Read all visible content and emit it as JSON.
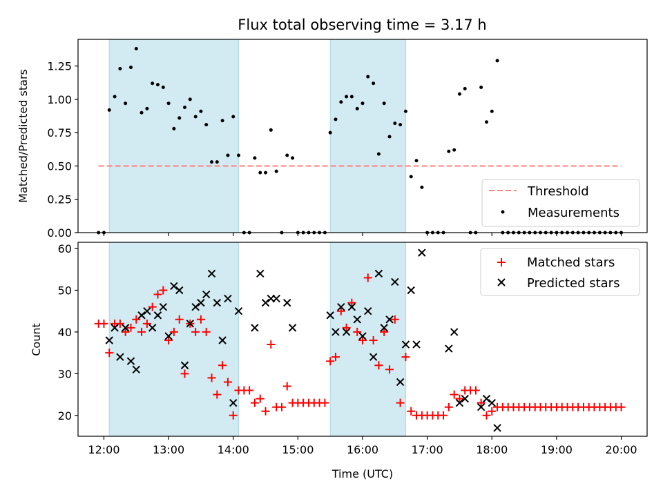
{
  "title": "Flux total observing time = 3.17 h",
  "colors": {
    "span": "#add8e6",
    "threshold": "#ff7f7f",
    "measurement": "#000000",
    "matched": "#ff0000",
    "predicted": "#000000"
  },
  "chart_data": [
    {
      "type": "scatter",
      "ylabel": "Matched/Predicted stars",
      "xlim": [
        11.6,
        20.4
      ],
      "ylim": [
        0,
        1.45
      ],
      "yticks": [
        0.0,
        0.25,
        0.5,
        0.75,
        1.0,
        1.25
      ],
      "ytick_labels": [
        "0.00",
        "0.25",
        "0.50",
        "0.75",
        "1.00",
        "1.25"
      ],
      "shaded_spans": [
        [
          12.083,
          14.083
        ],
        [
          15.5,
          16.667
        ]
      ],
      "threshold": {
        "name": "Threshold",
        "y": 0.5,
        "x_range": [
          11.917,
          20.0
        ]
      },
      "legend": {
        "position": "lower-right",
        "entries": [
          "Threshold",
          "Measurements"
        ]
      },
      "series": [
        {
          "name": "Measurements",
          "marker": "dot",
          "points": [
            [
              11.917,
              0
            ],
            [
              12.0,
              0
            ],
            [
              12.083,
              0.92
            ],
            [
              12.167,
              1.02
            ],
            [
              12.25,
              1.23
            ],
            [
              12.333,
              0.97
            ],
            [
              12.417,
              1.24
            ],
            [
              12.5,
              1.38
            ],
            [
              12.583,
              0.9
            ],
            [
              12.667,
              0.93
            ],
            [
              12.75,
              1.12
            ],
            [
              12.833,
              1.11
            ],
            [
              12.917,
              1.09
            ],
            [
              13.0,
              0.97
            ],
            [
              13.083,
              0.78
            ],
            [
              13.167,
              0.86
            ],
            [
              13.25,
              0.94
            ],
            [
              13.333,
              1.0
            ],
            [
              13.417,
              0.87
            ],
            [
              13.5,
              0.91
            ],
            [
              13.583,
              0.81
            ],
            [
              13.667,
              0.53
            ],
            [
              13.75,
              0.53
            ],
            [
              13.833,
              0.84
            ],
            [
              13.917,
              0.58
            ],
            [
              14.0,
              0.87
            ],
            [
              14.083,
              0.58
            ],
            [
              14.167,
              0
            ],
            [
              14.25,
              0
            ],
            [
              14.333,
              0.56
            ],
            [
              14.417,
              0.45
            ],
            [
              14.5,
              0.45
            ],
            [
              14.583,
              0.77
            ],
            [
              14.667,
              0.46
            ],
            [
              14.75,
              0
            ],
            [
              14.833,
              0.58
            ],
            [
              14.917,
              0.56
            ],
            [
              15.0,
              0
            ],
            [
              15.083,
              0
            ],
            [
              15.167,
              0
            ],
            [
              15.25,
              0
            ],
            [
              15.333,
              0
            ],
            [
              15.417,
              0
            ],
            [
              15.5,
              0.75
            ],
            [
              15.583,
              0.85
            ],
            [
              15.667,
              0.98
            ],
            [
              15.75,
              1.02
            ],
            [
              15.833,
              1.02
            ],
            [
              15.917,
              0.93
            ],
            [
              16.0,
              0.97
            ],
            [
              16.083,
              1.17
            ],
            [
              16.167,
              1.12
            ],
            [
              16.25,
              0.59
            ],
            [
              16.333,
              0.97
            ],
            [
              16.417,
              0.72
            ],
            [
              16.5,
              0.82
            ],
            [
              16.583,
              0.81
            ],
            [
              16.667,
              0.91
            ],
            [
              16.75,
              0.42
            ],
            [
              16.833,
              0.54
            ],
            [
              16.917,
              0.34
            ],
            [
              17.0,
              0
            ],
            [
              17.083,
              0
            ],
            [
              17.167,
              0
            ],
            [
              17.25,
              0
            ],
            [
              17.333,
              0.61
            ],
            [
              17.417,
              0.62
            ],
            [
              17.5,
              1.04
            ],
            [
              17.583,
              1.08
            ],
            [
              17.667,
              0
            ],
            [
              17.75,
              0
            ],
            [
              17.833,
              1.09
            ],
            [
              17.917,
              0.83
            ],
            [
              18.0,
              0.91
            ],
            [
              18.083,
              1.29
            ],
            [
              18.167,
              0
            ],
            [
              18.25,
              0
            ],
            [
              18.333,
              0
            ],
            [
              18.417,
              0
            ],
            [
              18.5,
              0
            ],
            [
              18.583,
              0
            ],
            [
              18.667,
              0
            ],
            [
              18.75,
              0
            ],
            [
              18.833,
              0
            ],
            [
              18.917,
              0
            ],
            [
              19.0,
              0
            ],
            [
              19.083,
              0
            ],
            [
              19.167,
              0
            ],
            [
              19.25,
              0
            ],
            [
              19.333,
              0
            ],
            [
              19.417,
              0
            ],
            [
              19.5,
              0
            ],
            [
              19.583,
              0
            ],
            [
              19.667,
              0
            ],
            [
              19.75,
              0
            ],
            [
              19.833,
              0
            ],
            [
              19.917,
              0
            ],
            [
              20.0,
              0
            ]
          ]
        }
      ]
    },
    {
      "type": "scatter",
      "xlabel": "Time (UTC)",
      "ylabel": "Count",
      "xlim": [
        11.6,
        20.4
      ],
      "ylim": [
        15,
        61.5
      ],
      "xticks": [
        12,
        13,
        14,
        15,
        16,
        17,
        18,
        19,
        20
      ],
      "xtick_labels": [
        "12:00",
        "13:00",
        "14:00",
        "15:00",
        "16:00",
        "17:00",
        "18:00",
        "19:00",
        "20:00"
      ],
      "yticks": [
        20,
        30,
        40,
        50,
        60
      ],
      "ytick_labels": [
        "20",
        "30",
        "40",
        "50",
        "60"
      ],
      "shaded_spans": [
        [
          12.083,
          14.083
        ],
        [
          15.5,
          16.667
        ]
      ],
      "legend": {
        "position": "upper-right",
        "entries": [
          "Matched stars",
          "Predicted stars"
        ]
      },
      "series": [
        {
          "name": "Matched stars",
          "marker": "plus",
          "points": [
            [
              11.917,
              42
            ],
            [
              12.0,
              42
            ],
            [
              12.083,
              35
            ],
            [
              12.167,
              42
            ],
            [
              12.25,
              42
            ],
            [
              12.333,
              40
            ],
            [
              12.417,
              41
            ],
            [
              12.5,
              43
            ],
            [
              12.583,
              40
            ],
            [
              12.667,
              42
            ],
            [
              12.75,
              46
            ],
            [
              12.833,
              49
            ],
            [
              12.917,
              50
            ],
            [
              13.0,
              38
            ],
            [
              13.083,
              40
            ],
            [
              13.167,
              43
            ],
            [
              13.25,
              30
            ],
            [
              13.333,
              42
            ],
            [
              13.417,
              40
            ],
            [
              13.5,
              43
            ],
            [
              13.583,
              40
            ],
            [
              13.667,
              29
            ],
            [
              13.75,
              25
            ],
            [
              13.833,
              32
            ],
            [
              13.917,
              28
            ],
            [
              14.0,
              20
            ],
            [
              14.083,
              26
            ],
            [
              14.167,
              26
            ],
            [
              14.25,
              26
            ],
            [
              14.333,
              23
            ],
            [
              14.417,
              24
            ],
            [
              14.5,
              21
            ],
            [
              14.583,
              37
            ],
            [
              14.667,
              22
            ],
            [
              14.75,
              22
            ],
            [
              14.833,
              27
            ],
            [
              14.917,
              23
            ],
            [
              15.0,
              23
            ],
            [
              15.083,
              23
            ],
            [
              15.167,
              23
            ],
            [
              15.25,
              23
            ],
            [
              15.333,
              23
            ],
            [
              15.417,
              23
            ],
            [
              15.5,
              33
            ],
            [
              15.583,
              34
            ],
            [
              15.667,
              45
            ],
            [
              15.75,
              41
            ],
            [
              15.833,
              47
            ],
            [
              15.917,
              40
            ],
            [
              16.0,
              38
            ],
            [
              16.083,
              53
            ],
            [
              16.167,
              38
            ],
            [
              16.25,
              32
            ],
            [
              16.333,
              40
            ],
            [
              16.417,
              31
            ],
            [
              16.5,
              43
            ],
            [
              16.583,
              23
            ],
            [
              16.667,
              34
            ],
            [
              16.75,
              21
            ],
            [
              16.833,
              20
            ],
            [
              16.917,
              20
            ],
            [
              17.0,
              20
            ],
            [
              17.083,
              20
            ],
            [
              17.167,
              20
            ],
            [
              17.25,
              20
            ],
            [
              17.333,
              22
            ],
            [
              17.417,
              25
            ],
            [
              17.5,
              24
            ],
            [
              17.583,
              26
            ],
            [
              17.667,
              26
            ],
            [
              17.75,
              26
            ],
            [
              17.833,
              23
            ],
            [
              17.917,
              20
            ],
            [
              18.0,
              21
            ],
            [
              18.083,
              22
            ],
            [
              18.167,
              22
            ],
            [
              18.25,
              22
            ],
            [
              18.333,
              22
            ],
            [
              18.417,
              22
            ],
            [
              18.5,
              22
            ],
            [
              18.583,
              22
            ],
            [
              18.667,
              22
            ],
            [
              18.75,
              22
            ],
            [
              18.833,
              22
            ],
            [
              18.917,
              22
            ],
            [
              19.0,
              22
            ],
            [
              19.083,
              22
            ],
            [
              19.167,
              22
            ],
            [
              19.25,
              22
            ],
            [
              19.333,
              22
            ],
            [
              19.417,
              22
            ],
            [
              19.5,
              22
            ],
            [
              19.583,
              22
            ],
            [
              19.667,
              22
            ],
            [
              19.75,
              22
            ],
            [
              19.833,
              22
            ],
            [
              19.917,
              22
            ],
            [
              20.0,
              22
            ]
          ]
        },
        {
          "name": "Predicted stars",
          "marker": "x",
          "points": [
            [
              12.083,
              38
            ],
            [
              12.167,
              41
            ],
            [
              12.25,
              34
            ],
            [
              12.333,
              41
            ],
            [
              12.417,
              33
            ],
            [
              12.5,
              31
            ],
            [
              12.583,
              44
            ],
            [
              12.667,
              45
            ],
            [
              12.75,
              41
            ],
            [
              12.833,
              44
            ],
            [
              12.917,
              46
            ],
            [
              13.0,
              39
            ],
            [
              13.083,
              51
            ],
            [
              13.167,
              50
            ],
            [
              13.25,
              32
            ],
            [
              13.333,
              42
            ],
            [
              13.417,
              46
            ],
            [
              13.5,
              47
            ],
            [
              13.583,
              49
            ],
            [
              13.667,
              54
            ],
            [
              13.75,
              47
            ],
            [
              13.833,
              38
            ],
            [
              13.917,
              48
            ],
            [
              14.0,
              23
            ],
            [
              14.083,
              45
            ],
            [
              14.333,
              41
            ],
            [
              14.417,
              54
            ],
            [
              14.5,
              47
            ],
            [
              14.583,
              48
            ],
            [
              14.667,
              48
            ],
            [
              14.833,
              47
            ],
            [
              14.917,
              41
            ],
            [
              15.5,
              44
            ],
            [
              15.583,
              40
            ],
            [
              15.667,
              46
            ],
            [
              15.75,
              40
            ],
            [
              15.833,
              46
            ],
            [
              15.917,
              43
            ],
            [
              16.0,
              39
            ],
            [
              16.083,
              45
            ],
            [
              16.167,
              34
            ],
            [
              16.25,
              54
            ],
            [
              16.333,
              41
            ],
            [
              16.417,
              43
            ],
            [
              16.5,
              52
            ],
            [
              16.583,
              28
            ],
            [
              16.667,
              37
            ],
            [
              16.75,
              50
            ],
            [
              16.833,
              37
            ],
            [
              16.917,
              59
            ],
            [
              17.333,
              36
            ],
            [
              17.417,
              40
            ],
            [
              17.5,
              23
            ],
            [
              17.583,
              24
            ],
            [
              17.833,
              22
            ],
            [
              17.917,
              24
            ],
            [
              18.0,
              23
            ],
            [
              18.083,
              17
            ]
          ]
        }
      ]
    }
  ]
}
